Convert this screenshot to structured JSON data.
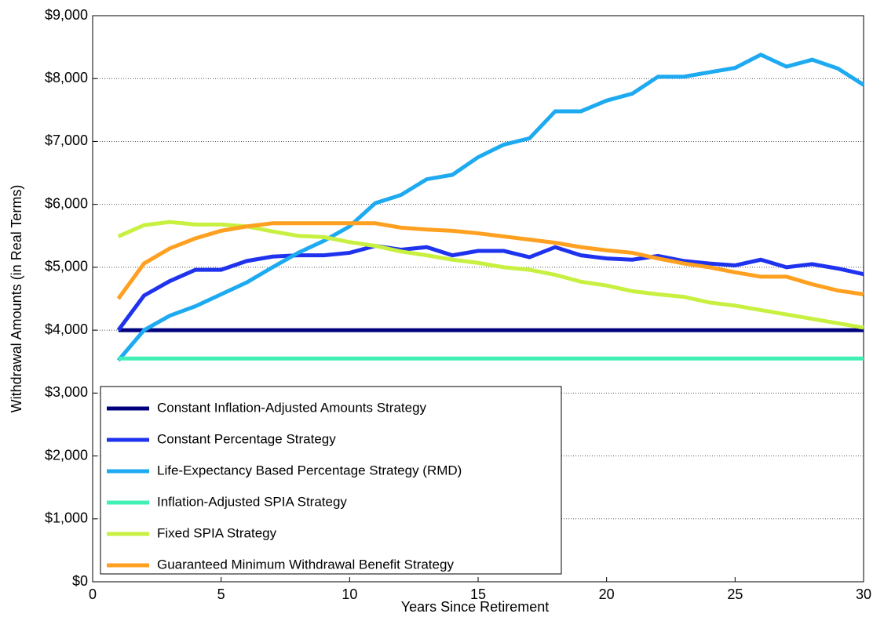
{
  "chart_data": {
    "type": "line",
    "x_label": "Years Since Retirement",
    "y_label": "Withdrawal Amounts (in Real Terms)",
    "x": [
      1,
      2,
      3,
      4,
      5,
      6,
      7,
      8,
      9,
      10,
      11,
      12,
      13,
      14,
      15,
      16,
      17,
      18,
      19,
      20,
      21,
      22,
      23,
      24,
      25,
      26,
      27,
      28,
      29,
      30
    ],
    "series": [
      {
        "name": "Constant Inflation-Adjusted Amounts Strategy",
        "color": "#00007f",
        "values": [
          4000,
          4000,
          4000,
          4000,
          4000,
          4000,
          4000,
          4000,
          4000,
          4000,
          4000,
          4000,
          4000,
          4000,
          4000,
          4000,
          4000,
          4000,
          4000,
          4000,
          4000,
          4000,
          4000,
          4000,
          4000,
          4000,
          4000,
          4000,
          4000,
          4000
        ]
      },
      {
        "name": "Constant Percentage Strategy",
        "color": "#1f33ee",
        "values": [
          4000,
          4550,
          4780,
          4960,
          4960,
          5100,
          5170,
          5190,
          5190,
          5230,
          5340,
          5280,
          5320,
          5190,
          5260,
          5260,
          5160,
          5320,
          5190,
          5140,
          5120,
          5180,
          5100,
          5060,
          5030,
          5120,
          5000,
          5050,
          4980,
          4890
        ]
      },
      {
        "name": "Life-Expectancy Based Percentage Strategy (RMD)",
        "color": "#1eaaf0",
        "values": [
          3520,
          4000,
          4230,
          4380,
          4570,
          4760,
          5000,
          5230,
          5420,
          5650,
          6020,
          6150,
          6400,
          6470,
          6750,
          6950,
          7050,
          7480,
          7480,
          7650,
          7760,
          8030,
          8030,
          8100,
          8170,
          8380,
          8190,
          8300,
          8160,
          7900
        ]
      },
      {
        "name": "Inflation-Adjusted SPIA Strategy",
        "color": "#40f0b4",
        "values": [
          3550,
          3550,
          3550,
          3550,
          3550,
          3550,
          3550,
          3550,
          3550,
          3550,
          3550,
          3550,
          3550,
          3550,
          3550,
          3550,
          3550,
          3550,
          3550,
          3550,
          3550,
          3550,
          3550,
          3550,
          3550,
          3550,
          3550,
          3550,
          3550,
          3550
        ]
      },
      {
        "name": "Fixed SPIA Strategy",
        "color": "#c8f040",
        "values": [
          5490,
          5670,
          5720,
          5680,
          5680,
          5650,
          5570,
          5500,
          5480,
          5400,
          5340,
          5250,
          5190,
          5120,
          5070,
          5000,
          4960,
          4880,
          4770,
          4710,
          4620,
          4570,
          4530,
          4440,
          4390,
          4320,
          4250,
          4180,
          4110,
          4040
        ]
      },
      {
        "name": "Guaranteed Minimum Withdrawal Benefit Strategy",
        "color": "#ffa020",
        "values": [
          4500,
          5060,
          5300,
          5460,
          5580,
          5650,
          5700,
          5700,
          5700,
          5700,
          5700,
          5630,
          5600,
          5580,
          5540,
          5490,
          5440,
          5390,
          5320,
          5270,
          5230,
          5140,
          5060,
          5000,
          4920,
          4850,
          4850,
          4730,
          4630,
          4570
        ]
      }
    ],
    "xlim": [
      0,
      30
    ],
    "xticks": [
      0,
      5,
      10,
      15,
      20,
      25,
      30
    ],
    "ylim": [
      0,
      9000
    ],
    "yticks": [
      {
        "value": 0,
        "label": "$0"
      },
      {
        "value": 1000,
        "label": "$1,000"
      },
      {
        "value": 2000,
        "label": "$2,000"
      },
      {
        "value": 3000,
        "label": "$3,000"
      },
      {
        "value": 4000,
        "label": "$4,000"
      },
      {
        "value": 5000,
        "label": "$5,000"
      },
      {
        "value": 6000,
        "label": "$6,000"
      },
      {
        "value": 7000,
        "label": "$7,000"
      },
      {
        "value": 8000,
        "label": "$8,000"
      },
      {
        "value": 9000,
        "label": "$9,000"
      }
    ],
    "grid": true,
    "legend": "lower left"
  }
}
